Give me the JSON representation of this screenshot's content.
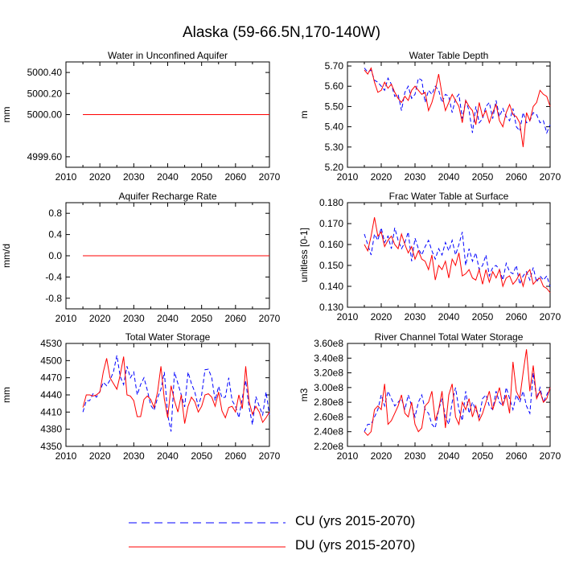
{
  "figure": {
    "title": "Alaska (59-66.5N,170-140W)"
  },
  "legend": {
    "cu_label": "CU (yrs 2015-2070)",
    "du_label": "DU (yrs 2015-2070)",
    "cu_color": "#0000ff",
    "du_color": "#ff0000"
  },
  "chart_data": [
    {
      "type": "line",
      "title": "Water in Unconfined Aquifer",
      "ylabel": "mm",
      "xlabel": "",
      "xlim": [
        2010,
        2070
      ],
      "ylim": [
        4999.5,
        5000.5
      ],
      "xticks": [
        2010,
        2020,
        2030,
        2040,
        2050,
        2060,
        2070
      ],
      "yticks": [
        4999.6,
        5000.0,
        5000.2,
        5000.4
      ],
      "ytick_labels": [
        "4999.60",
        "5000.00",
        "5000.20",
        "5000.40"
      ],
      "x_start": 2015,
      "series": [
        {
          "name": "CU",
          "color": "#0000ff",
          "dash": true,
          "values": [
            5000,
            5000,
            5000,
            5000,
            5000,
            5000,
            5000,
            5000,
            5000,
            5000,
            5000,
            5000,
            5000,
            5000,
            5000,
            5000,
            5000,
            5000,
            5000,
            5000,
            5000,
            5000,
            5000,
            5000,
            5000,
            5000,
            5000,
            5000,
            5000,
            5000,
            5000,
            5000,
            5000,
            5000,
            5000,
            5000,
            5000,
            5000,
            5000,
            5000,
            5000,
            5000,
            5000,
            5000,
            5000,
            5000,
            5000,
            5000,
            5000,
            5000,
            5000,
            5000,
            5000,
            5000,
            5000,
            5000
          ]
        },
        {
          "name": "DU",
          "color": "#ff0000",
          "dash": false,
          "values": [
            5000,
            5000,
            5000,
            5000,
            5000,
            5000,
            5000,
            5000,
            5000,
            5000,
            5000,
            5000,
            5000,
            5000,
            5000,
            5000,
            5000,
            5000,
            5000,
            5000,
            5000,
            5000,
            5000,
            5000,
            5000,
            5000,
            5000,
            5000,
            5000,
            5000,
            5000,
            5000,
            5000,
            5000,
            5000,
            5000,
            5000,
            5000,
            5000,
            5000,
            5000,
            5000,
            5000,
            5000,
            5000,
            5000,
            5000,
            5000,
            5000,
            5000,
            5000,
            5000,
            5000,
            5000,
            5000,
            5000
          ]
        }
      ]
    },
    {
      "type": "line",
      "title": "Water Table Depth",
      "ylabel": "m",
      "xlabel": "",
      "xlim": [
        2010,
        2070
      ],
      "ylim": [
        5.2,
        5.72
      ],
      "xticks": [
        2010,
        2020,
        2030,
        2040,
        2050,
        2060,
        2070
      ],
      "yticks": [
        5.2,
        5.3,
        5.4,
        5.5,
        5.6,
        5.7
      ],
      "ytick_labels": [
        "5.20",
        "5.30",
        "5.40",
        "5.50",
        "5.60",
        "5.70"
      ],
      "x_start": 2015,
      "series": [
        {
          "name": "CU",
          "color": "#0000ff",
          "dash": true,
          "values": [
            5.69,
            5.67,
            5.68,
            5.63,
            5.62,
            5.6,
            5.58,
            5.64,
            5.61,
            5.55,
            5.56,
            5.48,
            5.57,
            5.6,
            5.54,
            5.56,
            5.64,
            5.63,
            5.52,
            5.58,
            5.56,
            5.6,
            5.58,
            5.52,
            5.56,
            5.55,
            5.47,
            5.54,
            5.56,
            5.44,
            5.53,
            5.48,
            5.37,
            5.5,
            5.42,
            5.44,
            5.5,
            5.52,
            5.44,
            5.53,
            5.45,
            5.49,
            5.45,
            5.43,
            5.49,
            5.4,
            5.38,
            5.47,
            5.42,
            5.43,
            5.47,
            5.46,
            5.42,
            5.43,
            5.37,
            5.41
          ]
        },
        {
          "name": "DU",
          "color": "#ff0000",
          "dash": false,
          "values": [
            5.68,
            5.66,
            5.69,
            5.62,
            5.57,
            5.58,
            5.62,
            5.59,
            5.61,
            5.57,
            5.54,
            5.52,
            5.55,
            5.53,
            5.58,
            5.6,
            5.58,
            5.56,
            5.57,
            5.48,
            5.52,
            5.58,
            5.66,
            5.56,
            5.48,
            5.52,
            5.56,
            5.53,
            5.5,
            5.42,
            5.53,
            5.5,
            5.48,
            5.41,
            5.52,
            5.45,
            5.48,
            5.42,
            5.47,
            5.51,
            5.43,
            5.4,
            5.47,
            5.51,
            5.46,
            5.45,
            5.42,
            5.3,
            5.47,
            5.43,
            5.5,
            5.52,
            5.58,
            5.56,
            5.55,
            5.5
          ]
        }
      ]
    },
    {
      "type": "line",
      "title": "Aquifer Recharge Rate",
      "ylabel": "mm/d",
      "xlabel": "",
      "xlim": [
        2010,
        2070
      ],
      "ylim": [
        -1.0,
        1.0
      ],
      "xticks": [
        2010,
        2020,
        2030,
        2040,
        2050,
        2060,
        2070
      ],
      "yticks": [
        -0.8,
        -0.4,
        0.0,
        0.4,
        0.8
      ],
      "ytick_labels": [
        "-0.8",
        "-0.4",
        "0.0",
        "0.4",
        "0.8"
      ],
      "x_start": 2015,
      "series": [
        {
          "name": "CU",
          "color": "#0000ff",
          "dash": true,
          "values": [
            0,
            0,
            0,
            0,
            0,
            0,
            0,
            0,
            0,
            0,
            0,
            0,
            0,
            0,
            0,
            0,
            0,
            0,
            0,
            0,
            0,
            0,
            0,
            0,
            0,
            0,
            0,
            0,
            0,
            0,
            0,
            0,
            0,
            0,
            0,
            0,
            0,
            0,
            0,
            0,
            0,
            0,
            0,
            0,
            0,
            0,
            0,
            0,
            0,
            0,
            0,
            0,
            0,
            0,
            0,
            0
          ]
        },
        {
          "name": "DU",
          "color": "#ff0000",
          "dash": false,
          "values": [
            0,
            0,
            0,
            0,
            0,
            0,
            0,
            0,
            0,
            0,
            0,
            0,
            0,
            0,
            0,
            0,
            0,
            0,
            0,
            0,
            0,
            0,
            0,
            0,
            0,
            0,
            0,
            0,
            0,
            0,
            0,
            0,
            0,
            0,
            0,
            0,
            0,
            0,
            0,
            0,
            0,
            0,
            0,
            0,
            0,
            0,
            0,
            0,
            0,
            0,
            0,
            0,
            0,
            0,
            0,
            0
          ]
        }
      ]
    },
    {
      "type": "line",
      "title": "Frac Water Table at Surface",
      "ylabel": "unitless [0-1]",
      "xlabel": "",
      "xlim": [
        2010,
        2070
      ],
      "ylim": [
        0.13,
        0.18
      ],
      "xticks": [
        2010,
        2020,
        2030,
        2040,
        2050,
        2060,
        2070
      ],
      "yticks": [
        0.13,
        0.14,
        0.15,
        0.16,
        0.17,
        0.18
      ],
      "ytick_labels": [
        "0.130",
        "0.140",
        "0.150",
        "0.160",
        "0.170",
        "0.180"
      ],
      "x_start": 2015,
      "series": [
        {
          "name": "CU",
          "color": "#0000ff",
          "dash": true,
          "values": [
            0.165,
            0.16,
            0.155,
            0.165,
            0.162,
            0.168,
            0.161,
            0.164,
            0.158,
            0.168,
            0.162,
            0.158,
            0.161,
            0.166,
            0.152,
            0.163,
            0.158,
            0.155,
            0.159,
            0.162,
            0.157,
            0.153,
            0.158,
            0.155,
            0.161,
            0.157,
            0.162,
            0.155,
            0.16,
            0.166,
            0.15,
            0.158,
            0.152,
            0.156,
            0.148,
            0.15,
            0.155,
            0.145,
            0.149,
            0.15,
            0.148,
            0.143,
            0.151,
            0.147,
            0.146,
            0.15,
            0.141,
            0.145,
            0.147,
            0.143,
            0.149,
            0.142,
            0.145,
            0.143,
            0.145,
            0.14
          ]
        },
        {
          "name": "DU",
          "color": "#ff0000",
          "dash": false,
          "values": [
            0.16,
            0.157,
            0.164,
            0.173,
            0.164,
            0.166,
            0.159,
            0.162,
            0.164,
            0.16,
            0.158,
            0.165,
            0.16,
            0.156,
            0.159,
            0.153,
            0.157,
            0.153,
            0.152,
            0.148,
            0.155,
            0.143,
            0.15,
            0.148,
            0.152,
            0.144,
            0.153,
            0.15,
            0.156,
            0.145,
            0.146,
            0.148,
            0.144,
            0.143,
            0.148,
            0.141,
            0.148,
            0.142,
            0.147,
            0.144,
            0.148,
            0.14,
            0.144,
            0.145,
            0.141,
            0.143,
            0.146,
            0.14,
            0.146,
            0.148,
            0.141,
            0.143,
            0.144,
            0.14,
            0.139,
            0.137
          ]
        }
      ]
    },
    {
      "type": "line",
      "title": "Total Water Storage",
      "ylabel": "mm",
      "xlabel": "",
      "xlim": [
        2010,
        2070
      ],
      "ylim": [
        4350,
        4530
      ],
      "xticks": [
        2010,
        2020,
        2030,
        2040,
        2050,
        2060,
        2070
      ],
      "yticks": [
        4350,
        4380,
        4410,
        4440,
        4470,
        4500,
        4530
      ],
      "ytick_labels": [
        "4350",
        "4380",
        "4410",
        "4440",
        "4470",
        "4500",
        "4530"
      ],
      "x_start": 2015,
      "series": [
        {
          "name": "CU",
          "color": "#0000ff",
          "dash": true,
          "values": [
            4410,
            4430,
            4430,
            4442,
            4436,
            4446,
            4462,
            4456,
            4466,
            4480,
            4509,
            4472,
            4458,
            4490,
            4470,
            4480,
            4440,
            4458,
            4470,
            4448,
            4422,
            4413,
            4435,
            4450,
            4480,
            4405,
            4376,
            4480,
            4460,
            4440,
            4419,
            4480,
            4460,
            4445,
            4420,
            4440,
            4484,
            4485,
            4470,
            4430,
            4455,
            4435,
            4436,
            4470,
            4430,
            4420,
            4400,
            4435,
            4465,
            4418,
            4388,
            4437,
            4420,
            4405,
            4445,
            4405
          ]
        },
        {
          "name": "DU",
          "color": "#ff0000",
          "dash": false,
          "values": [
            4418,
            4440,
            4440,
            4438,
            4440,
            4445,
            4480,
            4504,
            4470,
            4460,
            4450,
            4475,
            4507,
            4440,
            4438,
            4430,
            4402,
            4402,
            4432,
            4438,
            4432,
            4418,
            4445,
            4490,
            4433,
            4400,
            4456,
            4430,
            4410,
            4440,
            4390,
            4420,
            4436,
            4428,
            4410,
            4420,
            4440,
            4442,
            4436,
            4420,
            4445,
            4412,
            4400,
            4418,
            4420,
            4410,
            4440,
            4416,
            4490,
            4428,
            4406,
            4420,
            4410,
            4392,
            4400,
            4410
          ]
        }
      ]
    },
    {
      "type": "line",
      "title": "River Channel Total Water Storage",
      "ylabel": "m3",
      "xlabel": "",
      "xlim": [
        2010,
        2070
      ],
      "ylim": [
        220000000.0,
        360000000.0
      ],
      "xticks": [
        2010,
        2020,
        2030,
        2040,
        2050,
        2060,
        2070
      ],
      "yticks": [
        220000000.0,
        240000000.0,
        260000000.0,
        280000000.0,
        300000000.0,
        320000000.0,
        340000000.0,
        360000000.0
      ],
      "ytick_labels": [
        "2.20e8",
        "2.40e8",
        "2.60e8",
        "2.80e8",
        "3.00e8",
        "3.20e8",
        "3.40e8",
        "3.60e8"
      ],
      "x_start": 2015,
      "series": [
        {
          "name": "CU",
          "color": "#0000ff",
          "dash": true,
          "values": [
            240000000.0,
            250000000.0,
            250000000.0,
            260000000.0,
            270000000.0,
            290000000.0,
            275000000.0,
            295000000.0,
            285000000.0,
            275000000.0,
            280000000.0,
            285000000.0,
            270000000.0,
            290000000.0,
            275000000.0,
            260000000.0,
            280000000.0,
            290000000.0,
            270000000.0,
            265000000.0,
            250000000.0,
            245000000.0,
            270000000.0,
            285000000.0,
            260000000.0,
            250000000.0,
            280000000.0,
            300000000.0,
            270000000.0,
            255000000.0,
            295000000.0,
            265000000.0,
            280000000.0,
            270000000.0,
            260000000.0,
            285000000.0,
            290000000.0,
            275000000.0,
            270000000.0,
            295000000.0,
            280000000.0,
            275000000.0,
            300000000.0,
            285000000.0,
            270000000.0,
            290000000.0,
            280000000.0,
            295000000.0,
            275000000.0,
            265000000.0,
            320000000.0,
            285000000.0,
            300000000.0,
            280000000.0,
            290000000.0,
            300000000.0
          ]
        },
        {
          "name": "DU",
          "color": "#ff0000",
          "dash": false,
          "values": [
            240000000.0,
            235000000.0,
            240000000.0,
            270000000.0,
            275000000.0,
            270000000.0,
            305000000.0,
            250000000.0,
            255000000.0,
            265000000.0,
            275000000.0,
            290000000.0,
            265000000.0,
            260000000.0,
            280000000.0,
            250000000.0,
            240000000.0,
            245000000.0,
            275000000.0,
            280000000.0,
            295000000.0,
            255000000.0,
            270000000.0,
            295000000.0,
            245000000.0,
            290000000.0,
            305000000.0,
            260000000.0,
            250000000.0,
            280000000.0,
            270000000.0,
            285000000.0,
            260000000.0,
            275000000.0,
            255000000.0,
            265000000.0,
            280000000.0,
            295000000.0,
            270000000.0,
            285000000.0,
            300000000.0,
            275000000.0,
            290000000.0,
            265000000.0,
            335000000.0,
            295000000.0,
            285000000.0,
            320000000.0,
            352000000.0,
            295000000.0,
            330000000.0,
            285000000.0,
            295000000.0,
            280000000.0,
            285000000.0,
            300000000.0
          ]
        }
      ]
    }
  ]
}
